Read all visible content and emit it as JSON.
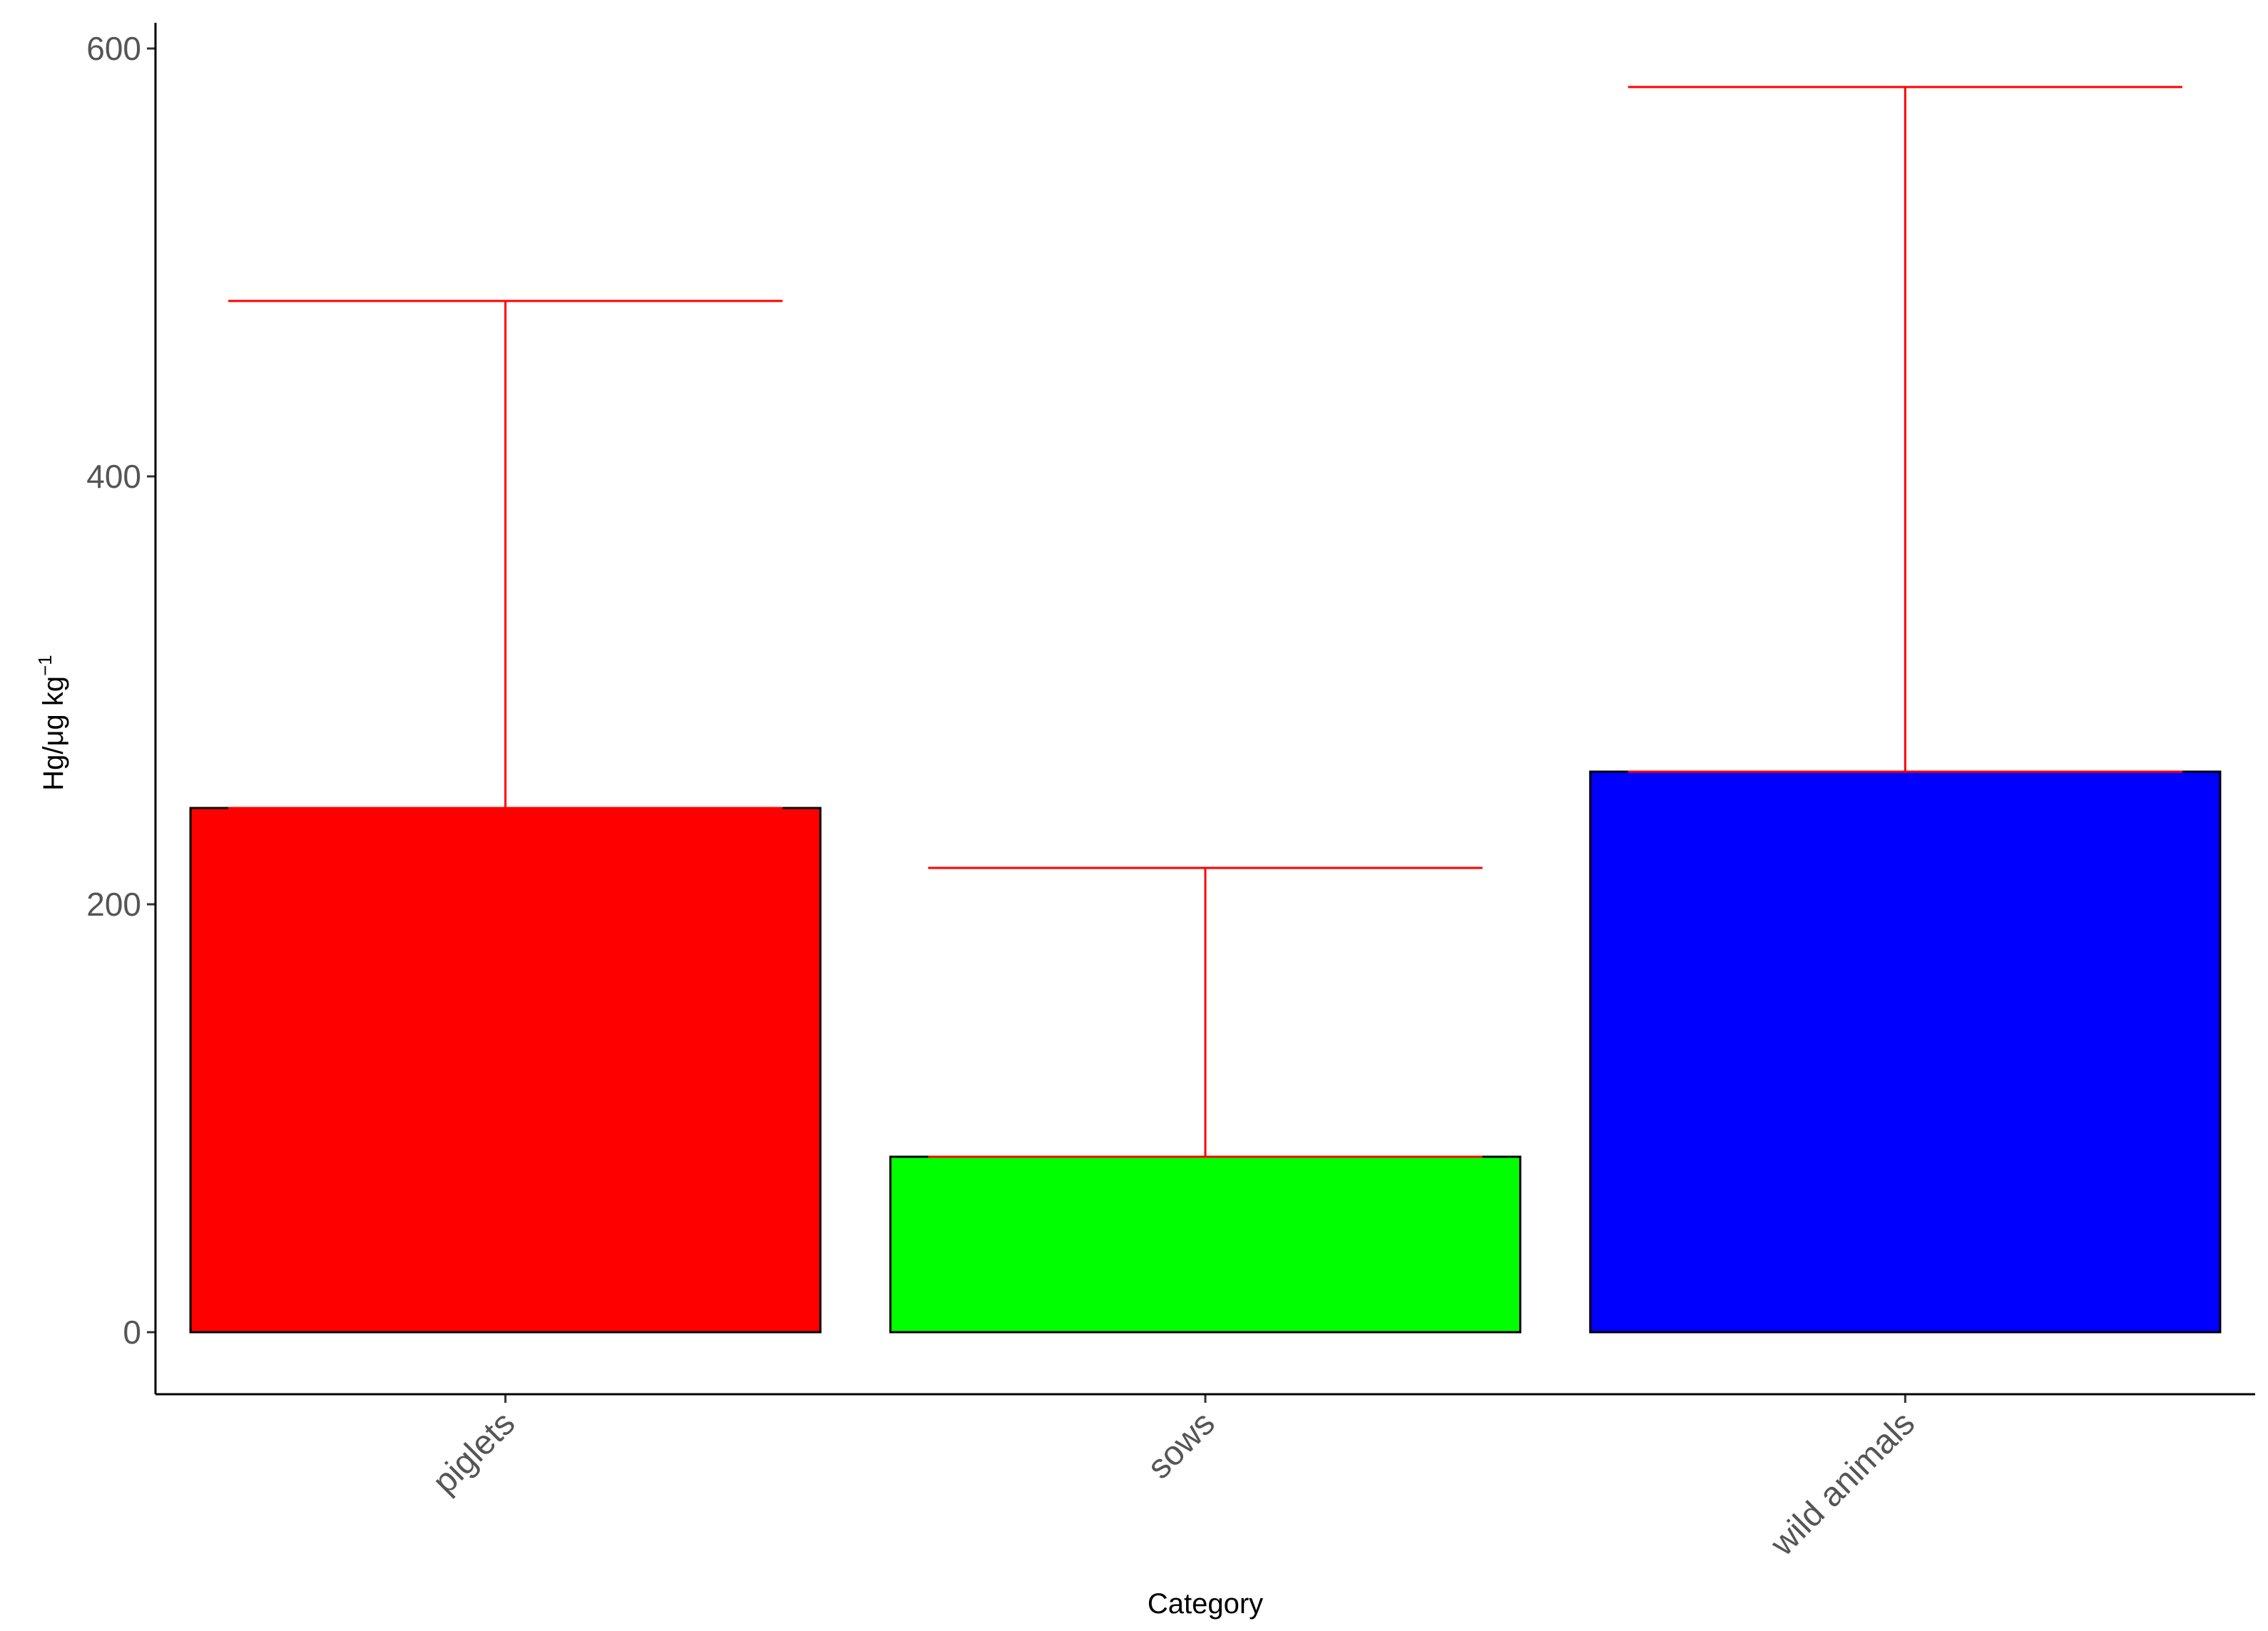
{
  "chart_data": {
    "type": "bar",
    "title": "",
    "xlabel": "Category",
    "ylabel": {
      "main": "Hg/μg kg",
      "superscript": "−1"
    },
    "categories": [
      "piglets",
      "sows",
      "wild animals"
    ],
    "values": [
      245,
      82,
      262
    ],
    "error_upper": [
      482,
      217,
      582
    ],
    "colors": [
      "#ff0000",
      "#00ff00",
      "#0000ff"
    ],
    "error_bar_color": "#ff0000",
    "ylim": [
      -29,
      612
    ],
    "yticks": [
      0,
      200,
      400,
      600
    ],
    "grid": false,
    "legend": "none"
  }
}
